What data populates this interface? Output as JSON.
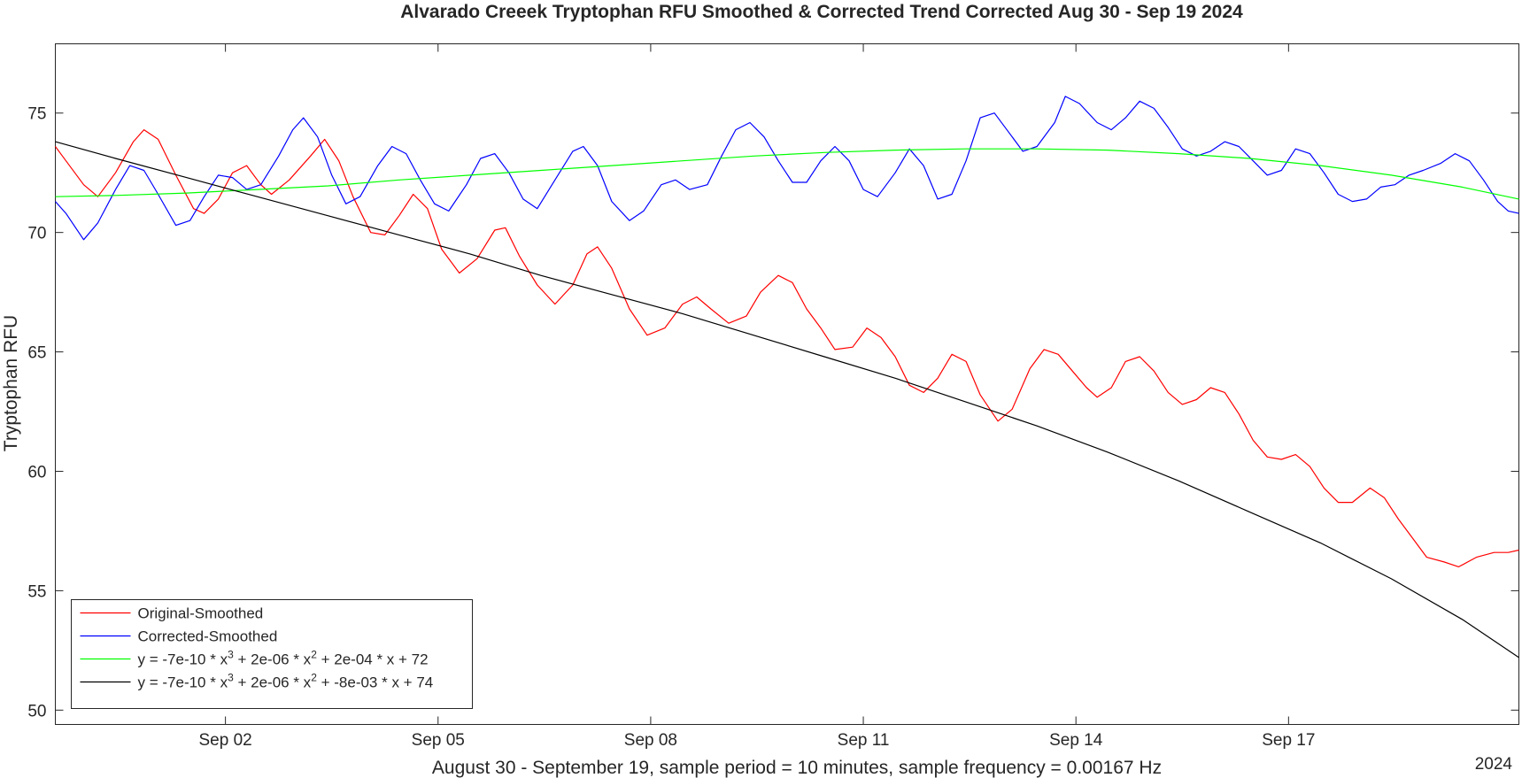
{
  "chart_data": {
    "type": "line",
    "title": "Alvarado Creeek Tryptophan RFU Smoothed & Corrected Trend Corrected Aug 30 - Sep 19 2024",
    "xlabel": "August 30 - September 19, sample period = 10 minutes, sample frequency = 0.00167 Hz",
    "ylabel": "Tryptophan RFU",
    "x_unit": "days since Aug 30 2024 00:00",
    "x_range": [
      0.15,
      20.8
    ],
    "ylim": [
      49.4,
      77.9
    ],
    "x_ticks": [
      {
        "x": 2.55,
        "label": "Sep 02"
      },
      {
        "x": 5.55,
        "label": "Sep 05"
      },
      {
        "x": 8.55,
        "label": "Sep 08"
      },
      {
        "x": 11.55,
        "label": "Sep 11"
      },
      {
        "x": 14.55,
        "label": "Sep 14"
      },
      {
        "x": 17.55,
        "label": "Sep 17"
      }
    ],
    "year_label": "2024",
    "y_ticks": [
      50,
      55,
      60,
      65,
      70,
      75
    ],
    "grid": false,
    "legend_position": "bottom-left",
    "legend": [
      {
        "name": "Original-Smoothed",
        "color": "#ff0000"
      },
      {
        "name": "Corrected-Smoothed",
        "color": "#0000ff"
      },
      {
        "name": "y = -7e-10 * x^3 + 2e-06 * x^2 + 2e-04 * x + 72",
        "color": "#00ff00",
        "parts": [
          "y = -7e-10 * x",
          "3",
          " + 2e-06 * x",
          "2",
          " + 2e-04 * x + 72"
        ]
      },
      {
        "name": "y = -7e-10 * x^3 + 2e-06 * x^2 + -8e-03 * x + 74",
        "color": "#000000",
        "parts": [
          "y = -7e-10 * x",
          "3",
          " + 2e-06 * x",
          "2",
          " + -8e-03 * x + 74"
        ]
      }
    ],
    "series": [
      {
        "name": "Original-Smoothed",
        "color": "#ff0000",
        "points": [
          [
            0.15,
            73.6
          ],
          [
            0.25,
            73.2
          ],
          [
            0.55,
            72.0
          ],
          [
            0.75,
            71.5
          ],
          [
            1.0,
            72.5
          ],
          [
            1.25,
            73.8
          ],
          [
            1.4,
            74.3
          ],
          [
            1.6,
            73.9
          ],
          [
            1.85,
            72.4
          ],
          [
            2.1,
            71.0
          ],
          [
            2.25,
            70.8
          ],
          [
            2.45,
            71.4
          ],
          [
            2.65,
            72.5
          ],
          [
            2.85,
            72.8
          ],
          [
            3.05,
            72.0
          ],
          [
            3.2,
            71.6
          ],
          [
            3.45,
            72.2
          ],
          [
            3.75,
            73.2
          ],
          [
            3.95,
            73.9
          ],
          [
            4.15,
            73.0
          ],
          [
            4.35,
            71.5
          ],
          [
            4.6,
            70.0
          ],
          [
            4.8,
            69.9
          ],
          [
            5.0,
            70.7
          ],
          [
            5.2,
            71.6
          ],
          [
            5.4,
            71.0
          ],
          [
            5.6,
            69.3
          ],
          [
            5.85,
            68.3
          ],
          [
            6.1,
            68.9
          ],
          [
            6.35,
            70.1
          ],
          [
            6.5,
            70.2
          ],
          [
            6.7,
            69.0
          ],
          [
            6.95,
            67.8
          ],
          [
            7.2,
            67.0
          ],
          [
            7.45,
            67.8
          ],
          [
            7.65,
            69.1
          ],
          [
            7.8,
            69.4
          ],
          [
            8.0,
            68.5
          ],
          [
            8.25,
            66.8
          ],
          [
            8.5,
            65.7
          ],
          [
            8.75,
            66.0
          ],
          [
            9.0,
            67.0
          ],
          [
            9.2,
            67.3
          ],
          [
            9.4,
            66.8
          ],
          [
            9.65,
            66.2
          ],
          [
            9.9,
            66.5
          ],
          [
            10.1,
            67.5
          ],
          [
            10.35,
            68.2
          ],
          [
            10.55,
            67.9
          ],
          [
            10.75,
            66.8
          ],
          [
            10.95,
            66.0
          ],
          [
            11.15,
            65.1
          ],
          [
            11.4,
            65.2
          ],
          [
            11.6,
            66.0
          ],
          [
            11.8,
            65.6
          ],
          [
            12.0,
            64.8
          ],
          [
            12.2,
            63.6
          ],
          [
            12.4,
            63.3
          ],
          [
            12.6,
            63.9
          ],
          [
            12.8,
            64.9
          ],
          [
            13.0,
            64.6
          ],
          [
            13.2,
            63.2
          ],
          [
            13.45,
            62.1
          ],
          [
            13.65,
            62.6
          ],
          [
            13.9,
            64.3
          ],
          [
            14.1,
            65.1
          ],
          [
            14.3,
            64.9
          ],
          [
            14.5,
            64.2
          ],
          [
            14.7,
            63.5
          ],
          [
            14.85,
            63.1
          ],
          [
            15.05,
            63.5
          ],
          [
            15.25,
            64.6
          ],
          [
            15.45,
            64.8
          ],
          [
            15.65,
            64.2
          ],
          [
            15.85,
            63.3
          ],
          [
            16.05,
            62.8
          ],
          [
            16.25,
            63.0
          ],
          [
            16.45,
            63.5
          ],
          [
            16.65,
            63.3
          ],
          [
            16.85,
            62.4
          ],
          [
            17.05,
            61.3
          ],
          [
            17.25,
            60.6
          ],
          [
            17.45,
            60.5
          ],
          [
            17.65,
            60.7
          ],
          [
            17.85,
            60.2
          ],
          [
            18.05,
            59.3
          ],
          [
            18.25,
            58.7
          ],
          [
            18.45,
            58.7
          ],
          [
            18.7,
            59.3
          ],
          [
            18.9,
            58.9
          ],
          [
            19.1,
            58.0
          ],
          [
            19.3,
            57.2
          ],
          [
            19.5,
            56.4
          ],
          [
            19.75,
            56.2
          ],
          [
            19.95,
            56.0
          ],
          [
            20.2,
            56.4
          ],
          [
            20.45,
            56.6
          ],
          [
            20.65,
            56.6
          ],
          [
            20.8,
            56.7
          ]
        ]
      },
      {
        "name": "Corrected-Smoothed",
        "color": "#0000ff",
        "points": [
          [
            0.15,
            71.3
          ],
          [
            0.3,
            70.8
          ],
          [
            0.55,
            69.7
          ],
          [
            0.75,
            70.4
          ],
          [
            1.0,
            71.8
          ],
          [
            1.2,
            72.8
          ],
          [
            1.4,
            72.6
          ],
          [
            1.6,
            71.6
          ],
          [
            1.85,
            70.3
          ],
          [
            2.05,
            70.5
          ],
          [
            2.25,
            71.5
          ],
          [
            2.45,
            72.4
          ],
          [
            2.65,
            72.3
          ],
          [
            2.85,
            71.8
          ],
          [
            3.05,
            72.0
          ],
          [
            3.3,
            73.2
          ],
          [
            3.5,
            74.3
          ],
          [
            3.65,
            74.8
          ],
          [
            3.85,
            74.0
          ],
          [
            4.05,
            72.4
          ],
          [
            4.25,
            71.2
          ],
          [
            4.45,
            71.5
          ],
          [
            4.7,
            72.8
          ],
          [
            4.9,
            73.6
          ],
          [
            5.1,
            73.3
          ],
          [
            5.3,
            72.2
          ],
          [
            5.5,
            71.2
          ],
          [
            5.7,
            70.9
          ],
          [
            5.95,
            72.0
          ],
          [
            6.15,
            73.1
          ],
          [
            6.35,
            73.3
          ],
          [
            6.55,
            72.5
          ],
          [
            6.75,
            71.4
          ],
          [
            6.95,
            71.0
          ],
          [
            7.2,
            72.2
          ],
          [
            7.45,
            73.4
          ],
          [
            7.6,
            73.6
          ],
          [
            7.8,
            72.8
          ],
          [
            8.0,
            71.3
          ],
          [
            8.25,
            70.5
          ],
          [
            8.45,
            70.9
          ],
          [
            8.7,
            72.0
          ],
          [
            8.9,
            72.2
          ],
          [
            9.1,
            71.8
          ],
          [
            9.35,
            72.0
          ],
          [
            9.55,
            73.2
          ],
          [
            9.75,
            74.3
          ],
          [
            9.95,
            74.6
          ],
          [
            10.15,
            74.0
          ],
          [
            10.35,
            73.0
          ],
          [
            10.55,
            72.1
          ],
          [
            10.75,
            72.1
          ],
          [
            10.95,
            73.0
          ],
          [
            11.15,
            73.6
          ],
          [
            11.35,
            73.0
          ],
          [
            11.55,
            71.8
          ],
          [
            11.75,
            71.5
          ],
          [
            12.0,
            72.5
          ],
          [
            12.2,
            73.5
          ],
          [
            12.4,
            72.8
          ],
          [
            12.6,
            71.4
          ],
          [
            12.8,
            71.6
          ],
          [
            13.0,
            73.0
          ],
          [
            13.2,
            74.8
          ],
          [
            13.4,
            75.0
          ],
          [
            13.6,
            74.2
          ],
          [
            13.8,
            73.4
          ],
          [
            14.0,
            73.6
          ],
          [
            14.25,
            74.6
          ],
          [
            14.4,
            75.7
          ],
          [
            14.6,
            75.4
          ],
          [
            14.85,
            74.6
          ],
          [
            15.05,
            74.3
          ],
          [
            15.25,
            74.8
          ],
          [
            15.45,
            75.5
          ],
          [
            15.65,
            75.2
          ],
          [
            15.85,
            74.4
          ],
          [
            16.05,
            73.5
          ],
          [
            16.25,
            73.2
          ],
          [
            16.45,
            73.4
          ],
          [
            16.65,
            73.8
          ],
          [
            16.85,
            73.6
          ],
          [
            17.05,
            73.0
          ],
          [
            17.25,
            72.4
          ],
          [
            17.45,
            72.6
          ],
          [
            17.65,
            73.5
          ],
          [
            17.85,
            73.3
          ],
          [
            18.05,
            72.5
          ],
          [
            18.25,
            71.6
          ],
          [
            18.45,
            71.3
          ],
          [
            18.65,
            71.4
          ],
          [
            18.85,
            71.9
          ],
          [
            19.05,
            72.0
          ],
          [
            19.25,
            72.4
          ],
          [
            19.45,
            72.6
          ],
          [
            19.7,
            72.9
          ],
          [
            19.9,
            73.3
          ],
          [
            20.1,
            73.0
          ],
          [
            20.3,
            72.2
          ],
          [
            20.5,
            71.3
          ],
          [
            20.65,
            70.9
          ],
          [
            20.8,
            70.8
          ]
        ]
      },
      {
        "name": "y = -7e-10 * x^3 + 2e-06 * x^2 + 2e-04 * x + 72",
        "color": "#00ff00",
        "points": [
          [
            0.15,
            71.5
          ],
          [
            1.0,
            71.55
          ],
          [
            2.0,
            71.65
          ],
          [
            3.0,
            71.8
          ],
          [
            4.0,
            71.95
          ],
          [
            5.0,
            72.2
          ],
          [
            6.0,
            72.4
          ],
          [
            7.0,
            72.6
          ],
          [
            8.0,
            72.8
          ],
          [
            9.0,
            73.0
          ],
          [
            10.0,
            73.2
          ],
          [
            11.0,
            73.35
          ],
          [
            12.0,
            73.45
          ],
          [
            13.0,
            73.5
          ],
          [
            14.0,
            73.5
          ],
          [
            15.0,
            73.45
          ],
          [
            16.0,
            73.3
          ],
          [
            17.0,
            73.1
          ],
          [
            18.0,
            72.8
          ],
          [
            19.0,
            72.4
          ],
          [
            20.0,
            71.9
          ],
          [
            20.8,
            71.4
          ]
        ]
      },
      {
        "name": "y = -7e-10 * x^3 + 2e-06 * x^2 + -8e-03 * x + 74",
        "color": "#000000",
        "points": [
          [
            0.15,
            73.8
          ],
          [
            1.0,
            73.1
          ],
          [
            2.0,
            72.3
          ],
          [
            3.0,
            71.5
          ],
          [
            4.0,
            70.7
          ],
          [
            5.0,
            69.9
          ],
          [
            6.0,
            69.1
          ],
          [
            7.0,
            68.2
          ],
          [
            8.0,
            67.4
          ],
          [
            9.0,
            66.6
          ],
          [
            10.0,
            65.7
          ],
          [
            11.0,
            64.8
          ],
          [
            12.0,
            63.9
          ],
          [
            13.0,
            62.9
          ],
          [
            14.0,
            61.9
          ],
          [
            15.0,
            60.8
          ],
          [
            16.0,
            59.6
          ],
          [
            17.0,
            58.3
          ],
          [
            18.0,
            57.0
          ],
          [
            19.0,
            55.5
          ],
          [
            20.0,
            53.8
          ],
          [
            20.8,
            52.2
          ]
        ]
      }
    ]
  }
}
